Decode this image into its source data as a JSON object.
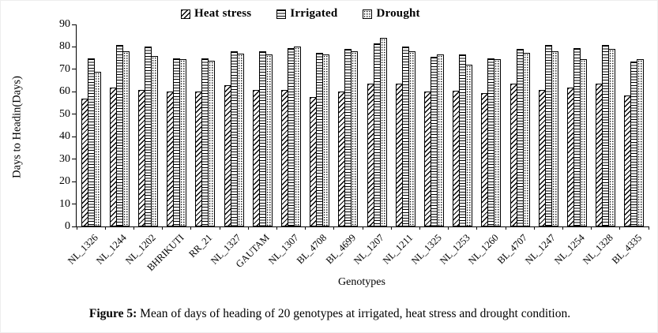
{
  "chart_data": {
    "type": "bar",
    "title": "",
    "xlabel": "Genotypes",
    "ylabel": "Days to Headin(Days)",
    "ylim": [
      0,
      90
    ],
    "ytick_interval": 10,
    "grid": false,
    "legend_position": "top",
    "categories": [
      "NL_1326",
      "NL_1244",
      "NL_1202",
      "BHRIKUTI",
      "RR_21",
      "NL_1327",
      "GAUTAM",
      "NL_1307",
      "BL_4708",
      "BL_4699",
      "NL_1207",
      "NL_1211",
      "NL_1325",
      "NL_1253",
      "NL_1260",
      "BL_4707",
      "NL_1247",
      "NL_1254",
      "NL_1328",
      "BL_4335"
    ],
    "series": [
      {
        "name": "Heat stress",
        "pattern": "diagonal-hatch",
        "values": [
          57,
          62,
          61,
          60,
          60,
          63,
          61,
          61,
          57.5,
          60,
          63.5,
          63.5,
          60,
          60.5,
          59.5,
          63.5,
          61,
          62,
          63.5,
          58.5
        ]
      },
      {
        "name": "Irrigated",
        "pattern": "horizontal-lines",
        "values": [
          75,
          81,
          80,
          75,
          75,
          78,
          78,
          79.5,
          77.5,
          79,
          81.5,
          80,
          75.5,
          76.5,
          75,
          79,
          81,
          79.5,
          81,
          73.5
        ]
      },
      {
        "name": "Drought",
        "pattern": "dots",
        "values": [
          69,
          78,
          76,
          74.5,
          74,
          77,
          76.5,
          80,
          76.5,
          78,
          84,
          78,
          76.5,
          72,
          74.5,
          77.5,
          78,
          74.5,
          79,
          74.5
        ]
      }
    ]
  },
  "caption": {
    "label": "Figure 5:",
    "text": " Mean of days of heading of 20 genotypes at irrigated, heat stress and drought condition."
  }
}
